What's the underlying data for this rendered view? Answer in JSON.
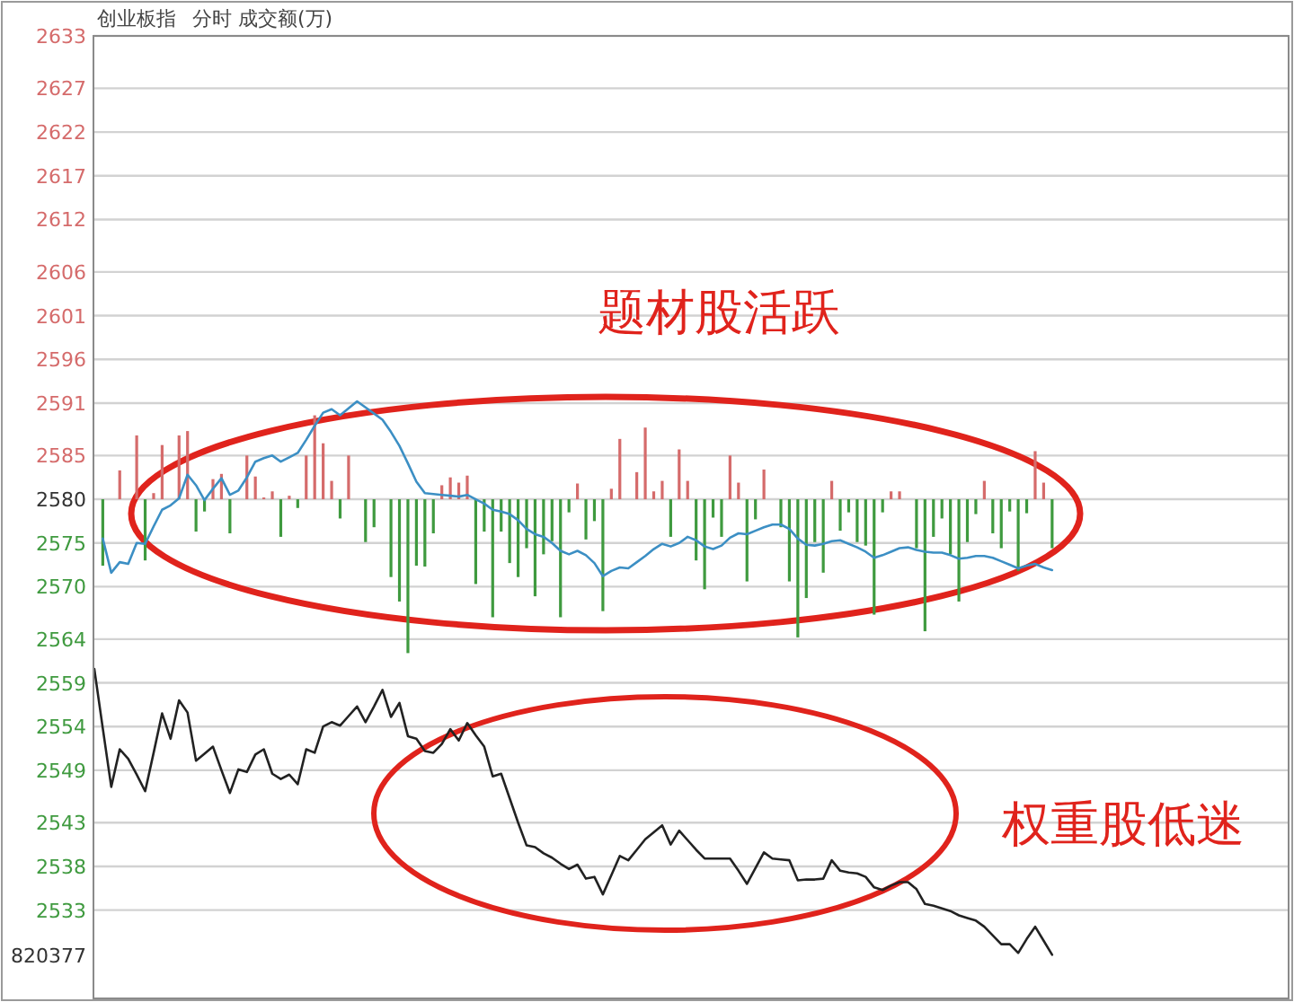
{
  "chart_data": {
    "type": "line",
    "title": "创业板指",
    "subtitle": "分时 成交额(万)",
    "annotations": [
      "题材股活跃",
      "权重股低迷",
      "820377"
    ],
    "categories": [
      null,
      null,
      null,
      null,
      null,
      null,
      null,
      null,
      null,
      null,
      null,
      null,
      null,
      null,
      null,
      null,
      null,
      null,
      null,
      null,
      null,
      null,
      null,
      null,
      null,
      null,
      null,
      null,
      null,
      null,
      null,
      null,
      null,
      null,
      null,
      null,
      null,
      null,
      null,
      null,
      null,
      null,
      null,
      null,
      null,
      null,
      null,
      null,
      null,
      null,
      null,
      null,
      null,
      null,
      null,
      null,
      null,
      null,
      null,
      null,
      null,
      null,
      null,
      null,
      null,
      null,
      null,
      null,
      null,
      null,
      null,
      null,
      null,
      null,
      null,
      null,
      null,
      null,
      null,
      null,
      null,
      null,
      null,
      null,
      null,
      null,
      null,
      null,
      null,
      null,
      null,
      null,
      null,
      null,
      null,
      null,
      null,
      null,
      null,
      null,
      null,
      null,
      null,
      null,
      null,
      null,
      null,
      null,
      null,
      null,
      null,
      null,
      null,
      null,
      null,
      null,
      null,
      null,
      null,
      null,
      null,
      null,
      null,
      null,
      null,
      null,
      null,
      null,
      null,
      null,
      null,
      null,
      null,
      null,
      null,
      null,
      null,
      null,
      null,
      null,
      null
    ],
    "ylim": [
      2522.9,
      2633
    ],
    "yticks": [
      2633,
      2627,
      2622,
      2617,
      2612,
      2606,
      2601,
      2596,
      2591,
      2585,
      2580,
      2575,
      2570,
      2564,
      2559,
      2554,
      2549,
      2543,
      2538,
      2533
    ],
    "grid": "y",
    "tick_labels": "y",
    "series": [
      {
        "type": "bar",
        "values": [
          null,
          -7.6,
          null,
          3.3,
          null,
          7.3,
          -7.0,
          0.7,
          6.2,
          null,
          7.3,
          7.8,
          -3.7,
          -1.4,
          2.3,
          2.9,
          -3.9,
          null,
          5.0,
          2.6,
          0.2,
          0.9,
          -4.3,
          0.4,
          -1.0,
          5.0,
          9.6,
          6.4,
          2.1,
          -2.2,
          5.0,
          null,
          -4.9,
          -3.2,
          null,
          -8.9,
          -11.7,
          -17.6,
          -7.6,
          -7.7,
          -3.9,
          1.6,
          2.5,
          1.9,
          2.7,
          -9.7,
          -3.7,
          -13.5,
          -3.7,
          -7.3,
          -8.9,
          -5.6,
          -11.1,
          -6.3,
          -4.8,
          -13.5,
          -1.5,
          1.8,
          -4.6,
          -2.5,
          -12.8,
          1.2,
          6.9,
          null,
          3.1,
          8.2,
          0.9,
          2.1,
          -4.3,
          5.7,
          2.1,
          -7.0,
          -10.3,
          -2.1,
          -4.3,
          5.0,
          1.9,
          -9.4,
          -2.3,
          3.4,
          null,
          -3.2,
          -9.4,
          -15.8,
          -11.3,
          -4.9,
          -8.4,
          2.1,
          -3.6,
          -1.5,
          -4.9,
          -5.3,
          -13.2,
          -1.5,
          0.9,
          0.9,
          null,
          -5.6,
          -15.1,
          -4.3,
          -2.2,
          -6.3,
          -11.7,
          -4.9,
          -1.7,
          2.1,
          -3.9,
          -5.6,
          -1.4,
          -8.2,
          -1.6,
          5.5,
          1.9,
          -5.6,
          null,
          null,
          null,
          null,
          null,
          null,
          null,
          null,
          null,
          null,
          null,
          null,
          null,
          null,
          null,
          null,
          null,
          null,
          null,
          null,
          null,
          null,
          null,
          null,
          null,
          null,
          null
        ],
        "base": [
          null,
          2580,
          null,
          2580,
          null,
          2580,
          2580,
          2580,
          2580,
          null,
          2580,
          2580,
          2580,
          2580,
          2580,
          2580,
          2580,
          null,
          2580,
          2580,
          2580,
          2580,
          2580,
          2580,
          2580,
          2580,
          2580,
          2580,
          2580,
          2580,
          2580,
          null,
          2580,
          2580,
          null,
          2580,
          2580,
          2580,
          2580,
          2580,
          2580,
          2580,
          2580,
          2580,
          2580,
          2580,
          2580,
          2580,
          2580,
          2580,
          2580,
          2580,
          2580,
          2580,
          2580,
          2580,
          2580,
          2580,
          2580,
          2580,
          2580,
          2580,
          2580,
          null,
          2580,
          2580,
          2580,
          2580,
          2580,
          2580,
          2580,
          2580,
          2580,
          2580,
          2580,
          2580,
          2580,
          2580,
          2580,
          2580,
          null,
          2580,
          2580,
          2580,
          2580,
          2580,
          2580,
          2580,
          2580,
          2580,
          2580,
          2580,
          2580,
          2580,
          2580,
          2580,
          null,
          2580,
          2580,
          2580,
          2580,
          2580,
          2580,
          2580,
          2580,
          2580,
          2580,
          2580,
          2580,
          2580,
          2580,
          2580,
          2580,
          2580,
          null,
          null,
          null,
          null,
          null,
          null,
          null,
          null,
          null,
          null,
          null,
          null,
          null,
          null,
          null,
          null,
          null,
          null,
          null,
          null,
          null,
          null,
          null,
          null,
          null,
          null,
          null
        ],
        "colors": [
          null,
          "#3f9a3f",
          null,
          "#d56b6b",
          null,
          "#d56b6b",
          "#3f9a3f",
          "#d56b6b",
          "#d56b6b",
          null,
          "#d56b6b",
          "#d56b6b",
          "#3f9a3f",
          "#3f9a3f",
          "#d56b6b",
          "#d56b6b",
          "#3f9a3f",
          null,
          "#d56b6b",
          "#d56b6b",
          "#d56b6b",
          "#d56b6b",
          "#3f9a3f",
          "#d56b6b",
          "#3f9a3f",
          "#d56b6b",
          "#d56b6b",
          "#d56b6b",
          "#d56b6b",
          "#3f9a3f",
          "#d56b6b",
          null,
          "#3f9a3f",
          "#3f9a3f",
          null,
          "#3f9a3f",
          "#3f9a3f",
          "#3f9a3f",
          "#3f9a3f",
          "#3f9a3f",
          "#3f9a3f",
          "#d56b6b",
          "#d56b6b",
          "#d56b6b",
          "#d56b6b",
          "#3f9a3f",
          "#3f9a3f",
          "#3f9a3f",
          "#3f9a3f",
          "#3f9a3f",
          "#3f9a3f",
          "#3f9a3f",
          "#3f9a3f",
          "#3f9a3f",
          "#3f9a3f",
          "#3f9a3f",
          "#3f9a3f",
          "#d56b6b",
          "#3f9a3f",
          "#3f9a3f",
          "#3f9a3f",
          "#d56b6b",
          "#d56b6b",
          null,
          "#d56b6b",
          "#d56b6b",
          "#d56b6b",
          "#d56b6b",
          "#3f9a3f",
          "#d56b6b",
          "#d56b6b",
          "#3f9a3f",
          "#3f9a3f",
          "#3f9a3f",
          "#3f9a3f",
          "#d56b6b",
          "#d56b6b",
          "#3f9a3f",
          "#3f9a3f",
          "#d56b6b",
          null,
          "#3f9a3f",
          "#3f9a3f",
          "#3f9a3f",
          "#3f9a3f",
          "#3f9a3f",
          "#3f9a3f",
          "#d56b6b",
          "#3f9a3f",
          "#3f9a3f",
          "#3f9a3f",
          "#3f9a3f",
          "#3f9a3f",
          "#3f9a3f",
          "#d56b6b",
          "#d56b6b",
          null,
          "#3f9a3f",
          "#3f9a3f",
          "#3f9a3f",
          "#3f9a3f",
          "#3f9a3f",
          "#3f9a3f",
          "#3f9a3f",
          "#3f9a3f",
          "#d56b6b",
          "#3f9a3f",
          "#3f9a3f",
          "#3f9a3f",
          "#3f9a3f",
          "#3f9a3f",
          "#d56b6b",
          "#d56b6b",
          "#3f9a3f",
          null,
          null,
          null,
          null,
          null,
          null,
          null,
          null,
          null,
          null,
          null,
          null,
          null,
          null,
          null,
          null,
          null,
          null,
          null,
          null,
          null,
          null,
          null,
          null,
          null,
          null,
          null
        ]
      },
      {
        "color": "#3c8fc4",
        "values": [
          null,
          2575.5,
          2571.6,
          2572.8,
          2572.6,
          2575.0,
          2574.9,
          2576.9,
          2578.8,
          2579.3,
          2580.1,
          2582.8,
          2581.6,
          2579.9,
          2581.2,
          2582.4,
          2580.5,
          2581.0,
          2582.5,
          2584.3,
          2584.7,
          2585.0,
          2584.3,
          2584.8,
          2585.3,
          2586.8,
          2588.4,
          2589.9,
          2590.3,
          2589.6,
          2590.4,
          2591.2,
          2590.5,
          2589.8,
          2589.1,
          2587.7,
          2586.1,
          2584.1,
          2582.0,
          2580.7,
          2580.6,
          2580.5,
          2580.4,
          2580.3,
          2580.5,
          2580.0,
          2579.5,
          2578.8,
          2578.6,
          2578.3,
          2577.6,
          2576.6,
          2576.0,
          2575.7,
          2575.0,
          2574.1,
          2573.7,
          2574.1,
          2573.6,
          2572.7,
          2571.2,
          2571.8,
          2572.2,
          2572.1,
          2572.8,
          2573.5,
          2574.3,
          2574.9,
          2574.6,
          2575.0,
          2575.7,
          2575.3,
          2574.6,
          2574.3,
          2574.7,
          2575.6,
          2576.1,
          2576.0,
          2576.4,
          2576.8,
          2577.1,
          2577.1,
          2576.6,
          2575.5,
          2574.8,
          2574.7,
          2574.9,
          2575.2,
          2575.3,
          2574.9,
          2574.5,
          2574.0,
          2573.3,
          2573.6,
          2574.0,
          2574.4,
          2574.5,
          2574.2,
          2574.0,
          2573.9,
          2573.9,
          2573.6,
          2573.2,
          2573.3,
          2573.5,
          2573.5,
          2573.3,
          2572.9,
          2572.5,
          2572.1,
          2572.4,
          2572.6,
          2572.2,
          2571.9,
          null,
          null,
          null,
          null,
          null,
          null,
          null,
          null,
          null,
          null,
          null,
          null,
          null,
          null,
          null,
          null,
          null,
          null,
          null,
          null,
          null,
          null,
          null,
          null,
          null,
          null,
          null
        ]
      },
      {
        "color": "#222222",
        "values": [
          2560.6,
          2553.8,
          2547.1,
          2551.4,
          2550.3,
          2548.5,
          2546.6,
          2551.0,
          2555.5,
          2552.6,
          2557.0,
          2555.6,
          2550.1,
          2550.9,
          2551.7,
          2549.0,
          2546.4,
          2549.1,
          2548.8,
          2550.8,
          2551.4,
          2548.6,
          2548.0,
          2548.5,
          2547.4,
          2551.4,
          2551.0,
          2554.0,
          2554.5,
          2554.1,
          2555.2,
          2556.3,
          2554.5,
          2556.3,
          2558.2,
          2555.1,
          2556.7,
          2552.9,
          2552.6,
          2551.2,
          2551.0,
          2552.0,
          2553.7,
          2552.4,
          2554.4,
          2553.0,
          2551.7,
          2548.3,
          2548.6,
          2545.8,
          2543.0,
          2540.4,
          2540.2,
          2539.5,
          2539.0,
          2538.3,
          2537.7,
          2538.2,
          2536.6,
          2536.8,
          2534.8,
          2537.0,
          2539.2,
          2538.7,
          2539.9,
          2541.1,
          2541.9,
          2542.7,
          2540.5,
          2542.1,
          2541.0,
          2539.9,
          2538.9,
          2538.9,
          2538.9,
          2538.9,
          2537.5,
          2536.0,
          2537.8,
          2539.6,
          2538.9,
          2538.8,
          2538.7,
          2536.4,
          2536.5,
          2536.5,
          2536.6,
          2538.7,
          2537.5,
          2537.3,
          2537.2,
          2536.8,
          2535.6,
          2535.3,
          2535.8,
          2536.2,
          2536.2,
          2535.4,
          2533.7,
          2533.5,
          2533.2,
          2532.9,
          2532.4,
          2532.1,
          2531.8,
          2531.1,
          2530.1,
          2529.1,
          2529.1,
          2528.1,
          2529.7,
          2531.1,
          2529.5,
          2527.9,
          null,
          null,
          null,
          null,
          null,
          null,
          null,
          null,
          null,
          null,
          null,
          null,
          null,
          null,
          null,
          null,
          null,
          null,
          null,
          null,
          null,
          null,
          null,
          null,
          null,
          null,
          null
        ]
      }
    ]
  }
}
